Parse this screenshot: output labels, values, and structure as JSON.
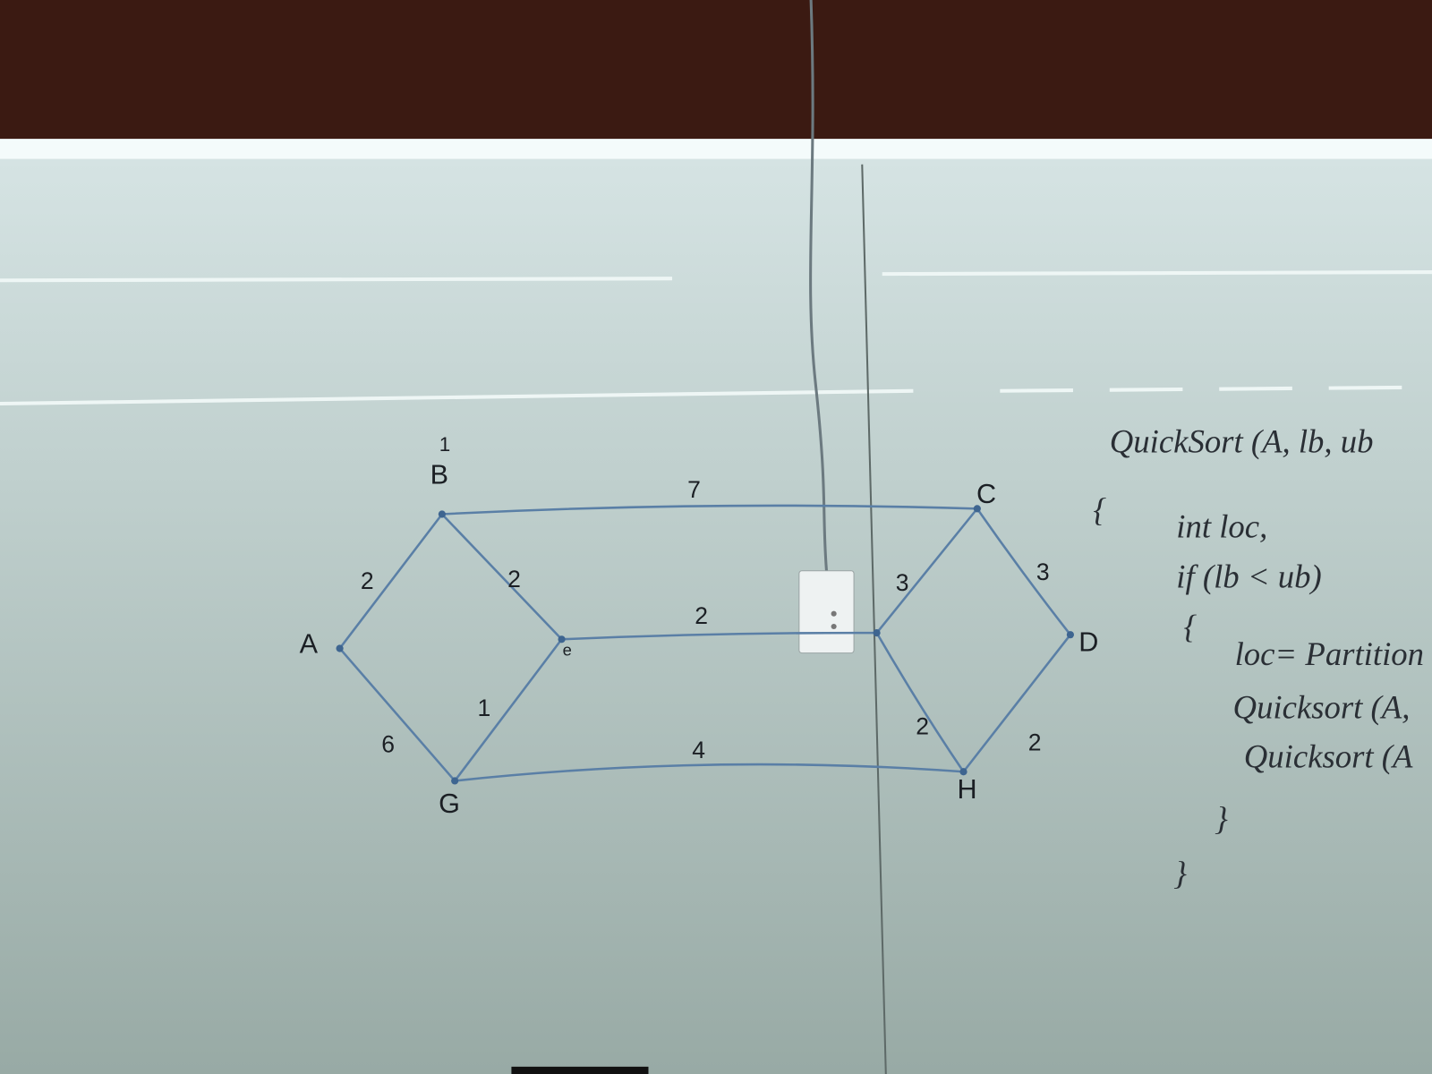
{
  "graph": {
    "node_labels": [
      "A",
      "B",
      "C",
      "D",
      "G",
      "H"
    ],
    "annotations": [
      "1",
      "e"
    ],
    "edge_weights": [
      "7",
      "2",
      "2",
      "2",
      "3",
      "3",
      "6",
      "1",
      "4",
      "2",
      "2"
    ]
  },
  "code": {
    "lines": [
      "QuickSort (A, lb, ub",
      "{",
      "int loc,",
      "if (lb < ub)",
      "{",
      "loc= Partition",
      "Quicksort (A,",
      "Quicksort (A",
      "}",
      "}"
    ]
  }
}
